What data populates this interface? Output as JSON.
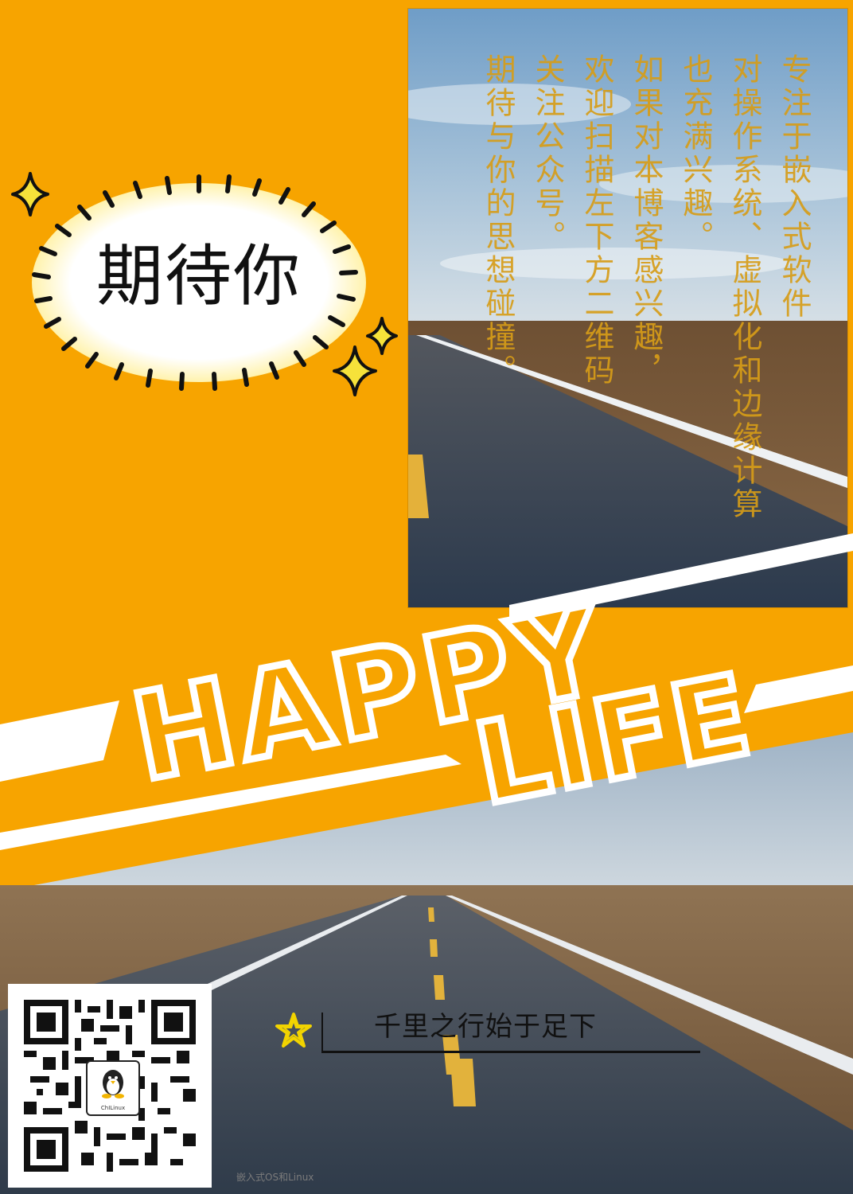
{
  "bubble": {
    "text": "期待你"
  },
  "photo_caption": {
    "text": "专注于嵌入式软件\n对操作系统、虚拟化和边缘计算\n也充满兴趣。\n如果对本博客感兴趣，\n欢迎扫描左下方二维码\n关注公众号。\n期待与你的思想碰撞。"
  },
  "banner": {
    "line1": "HAPPY",
    "line2": "LIFE"
  },
  "motto": {
    "text": "千里之行始于足下"
  },
  "qr": {
    "logo_text": "ChILinux",
    "caption": "嵌入式OS和Linux"
  },
  "colors": {
    "background": "#f7a400",
    "band": "#ffffff",
    "caption_gold": "#d69c18",
    "star": "#f2d400"
  }
}
